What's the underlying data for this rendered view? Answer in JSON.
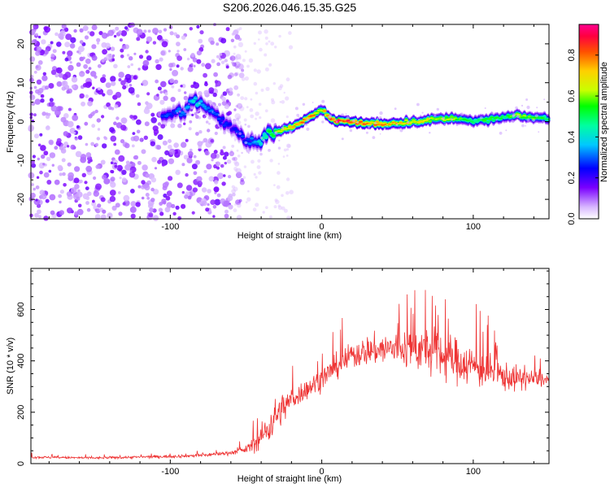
{
  "title": "S206.2026.046.15.35.G25",
  "colors": {
    "trace": "#ee3333"
  },
  "chart_data": [
    {
      "type": "heatmap",
      "name": "spectrogram",
      "xlabel": "Height of straight line (km)",
      "ylabel": "Frequency (Hz)",
      "xlim": [
        -192,
        150
      ],
      "ylim": [
        -25,
        25
      ],
      "xticks": [
        -100,
        0,
        100
      ],
      "xtick_labels": [
        "-100",
        "0",
        "100"
      ],
      "yticks": [
        -20,
        -10,
        0,
        10,
        20
      ],
      "ytick_labels": [
        "-20",
        "-10",
        "0",
        "10",
        "20"
      ],
      "colorbar": {
        "label": "Normalized spectral amplitude",
        "range": [
          0,
          0.95
        ],
        "ticks": [
          0.0,
          0.2,
          0.4,
          0.6,
          0.8
        ],
        "tick_labels": [
          "0.0",
          "0.2",
          "0.4",
          "0.6",
          "0.8"
        ]
      },
      "ridge": {
        "x": [
          -103,
          -90,
          -84,
          -78,
          -68,
          -60,
          -52,
          -44,
          -38,
          -30,
          -20,
          -10,
          -4,
          0,
          6,
          15,
          30,
          45,
          60,
          75,
          90,
          100,
          110,
          120,
          130,
          140,
          150
        ],
        "f": [
          1,
          3,
          6,
          4,
          1,
          -1,
          -4,
          -5.5,
          -4,
          -2.5,
          -1.5,
          0.5,
          2,
          3.5,
          0.5,
          0,
          -0.5,
          -0.5,
          0,
          0.5,
          1,
          0,
          0.5,
          1,
          1.5,
          1,
          1
        ],
        "peak": [
          0.3,
          0.35,
          0.45,
          0.4,
          0.3,
          0.25,
          0.3,
          0.35,
          0.5,
          0.65,
          0.8,
          0.85,
          0.8,
          0.7,
          0.95,
          0.95,
          0.85,
          0.8,
          0.75,
          0.7,
          0.65,
          0.5,
          0.6,
          0.55,
          0.65,
          0.6,
          0.55
        ]
      }
    },
    {
      "type": "line",
      "name": "snr",
      "xlabel": "Height of straight line (km)",
      "ylabel": "SNR (10 * v/v)",
      "xlim": [
        -192,
        150
      ],
      "ylim": [
        0,
        760
      ],
      "xticks": [
        -100,
        0,
        100
      ],
      "xtick_labels": [
        "-100",
        "0",
        "100"
      ],
      "yticks": [
        0,
        200,
        400,
        600
      ],
      "ytick_labels": [
        "0",
        "200",
        "400",
        "600"
      ],
      "envelope": {
        "x": [
          -192,
          -150,
          -100,
          -80,
          -60,
          -50,
          -42,
          -35,
          -30,
          -20,
          -10,
          0,
          10,
          20,
          30,
          40,
          50,
          60,
          70,
          80,
          90,
          100,
          110,
          120,
          130,
          140,
          150
        ],
        "mean": [
          25,
          22,
          28,
          32,
          42,
          55,
          90,
          140,
          190,
          250,
          290,
          330,
          380,
          420,
          440,
          445,
          450,
          450,
          440,
          420,
          400,
          380,
          360,
          340,
          330,
          330,
          325
        ],
        "spread": [
          8,
          8,
          10,
          12,
          14,
          25,
          70,
          110,
          120,
          80,
          70,
          75,
          85,
          90,
          100,
          110,
          130,
          150,
          160,
          160,
          150,
          140,
          120,
          100,
          80,
          60,
          40
        ]
      }
    }
  ]
}
